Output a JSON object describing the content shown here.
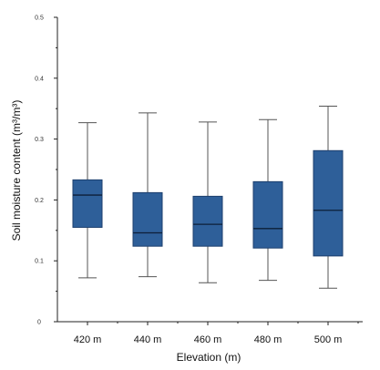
{
  "chart_data": {
    "type": "box",
    "title": "",
    "xlabel": "Elevation (m)",
    "ylabel": "Soil moisture content (m³/m³)",
    "ylim": [
      0,
      0.5
    ],
    "y_ticks": [
      {
        "value": 0,
        "label": "0"
      },
      {
        "value": 0.1,
        "label": "0.1"
      },
      {
        "value": 0.2,
        "label": "0.2"
      },
      {
        "value": 0.3,
        "label": "0.3"
      },
      {
        "value": 0.4,
        "label": "0.4"
      },
      {
        "value": 0.5,
        "label": "0.5"
      }
    ],
    "y_minor_ticks": [
      0.05,
      0.15,
      0.25,
      0.35,
      0.45
    ],
    "categories": [
      "420 m",
      "440 m",
      "460 m",
      "480 m",
      "500 m"
    ],
    "boxes": [
      {
        "category": "420 m",
        "min": 0.072,
        "q1": 0.155,
        "median": 0.208,
        "q3": 0.233,
        "max": 0.327
      },
      {
        "category": "440 m",
        "min": 0.074,
        "q1": 0.124,
        "median": 0.146,
        "q3": 0.212,
        "max": 0.343
      },
      {
        "category": "460 m",
        "min": 0.064,
        "q1": 0.124,
        "median": 0.16,
        "q3": 0.206,
        "max": 0.328
      },
      {
        "category": "480 m",
        "min": 0.068,
        "q1": 0.121,
        "median": 0.153,
        "q3": 0.23,
        "max": 0.332
      },
      {
        "category": "500 m",
        "min": 0.055,
        "q1": 0.108,
        "median": 0.183,
        "q3": 0.281,
        "max": 0.354
      }
    ],
    "box_color": "#2e5f99",
    "box_edge_color": "#1c3f6e",
    "grid": false,
    "legend": "none"
  }
}
